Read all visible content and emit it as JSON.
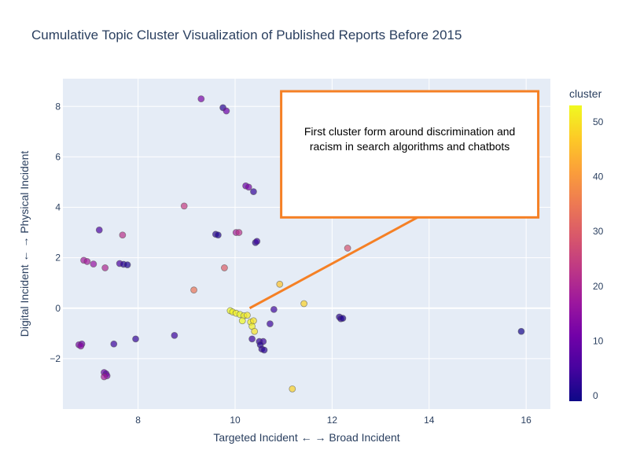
{
  "chart_data": {
    "type": "scatter",
    "title": "Cumulative Topic Cluster Visualization of Published Reports Before 2015",
    "xlabel": "Targeted Incident ← → Broad Incident",
    "ylabel": "Digital Incident ← → Physical Incident",
    "xlim": [
      6.45,
      16.5
    ],
    "ylim": [
      -4.0,
      9.1
    ],
    "x_ticks": [
      8,
      10,
      12,
      14,
      16
    ],
    "y_ticks": [
      -2,
      0,
      2,
      4,
      6,
      8
    ],
    "grid": true,
    "colorbar": {
      "title": "cluster",
      "range": [
        -1,
        53
      ],
      "ticks": [
        0,
        10,
        20,
        30,
        40,
        50
      ],
      "colorscale": [
        "#0d0887",
        "#46039f",
        "#7201a8",
        "#9c179e",
        "#bd3786",
        "#d8576b",
        "#ed7953",
        "#fb9f3a",
        "#fdca26",
        "#f0f921"
      ]
    },
    "annotation": {
      "text_lines": [
        "First cluster form around discrimination and",
        "racism in search algorithms and chatbots"
      ],
      "point": [
        10.3,
        0.0
      ],
      "box": {
        "x0": 10.95,
        "x1": 16.25,
        "y0": 3.6,
        "y1": 8.6
      },
      "border_color": "#f58025",
      "arrow_color": "#f58025"
    },
    "points": [
      {
        "x": 9.3,
        "y": 8.3,
        "c": 12
      },
      {
        "x": 9.75,
        "y": 7.95,
        "c": 2
      },
      {
        "x": 9.82,
        "y": 7.82,
        "c": 10
      },
      {
        "x": 10.22,
        "y": 4.85,
        "c": 10
      },
      {
        "x": 10.28,
        "y": 4.8,
        "c": 12
      },
      {
        "x": 10.38,
        "y": 4.62,
        "c": 3
      },
      {
        "x": 8.95,
        "y": 4.05,
        "c": 24
      },
      {
        "x": 7.2,
        "y": 3.1,
        "c": 6
      },
      {
        "x": 7.68,
        "y": 2.9,
        "c": 22
      },
      {
        "x": 9.6,
        "y": 2.93,
        "c": 2
      },
      {
        "x": 9.65,
        "y": 2.9,
        "c": 1
      },
      {
        "x": 10.02,
        "y": 3.0,
        "c": 18
      },
      {
        "x": 10.08,
        "y": 3.0,
        "c": 22
      },
      {
        "x": 10.42,
        "y": 2.6,
        "c": 2
      },
      {
        "x": 10.45,
        "y": 2.65,
        "c": 4
      },
      {
        "x": 12.32,
        "y": 2.38,
        "c": 28
      },
      {
        "x": 6.88,
        "y": 1.9,
        "c": 18
      },
      {
        "x": 6.95,
        "y": 1.85,
        "c": 18
      },
      {
        "x": 7.08,
        "y": 1.75,
        "c": 16
      },
      {
        "x": 7.32,
        "y": 1.6,
        "c": 20
      },
      {
        "x": 7.62,
        "y": 1.77,
        "c": 6
      },
      {
        "x": 7.7,
        "y": 1.74,
        "c": 2
      },
      {
        "x": 7.78,
        "y": 1.72,
        "c": 1
      },
      {
        "x": 9.78,
        "y": 1.6,
        "c": 30
      },
      {
        "x": 9.15,
        "y": 0.72,
        "c": 34
      },
      {
        "x": 10.92,
        "y": 0.95,
        "c": 46
      },
      {
        "x": 11.42,
        "y": 0.18,
        "c": 48
      },
      {
        "x": 10.8,
        "y": -0.05,
        "c": 4
      },
      {
        "x": 9.9,
        "y": -0.1,
        "c": 53
      },
      {
        "x": 9.95,
        "y": -0.15,
        "c": 52
      },
      {
        "x": 10.02,
        "y": -0.2,
        "c": 52
      },
      {
        "x": 10.1,
        "y": -0.25,
        "c": 53
      },
      {
        "x": 10.18,
        "y": -0.3,
        "c": 52
      },
      {
        "x": 10.25,
        "y": -0.28,
        "c": 51
      },
      {
        "x": 10.15,
        "y": -0.5,
        "c": 53
      },
      {
        "x": 10.32,
        "y": -0.55,
        "c": 52
      },
      {
        "x": 10.38,
        "y": -0.5,
        "c": 50
      },
      {
        "x": 10.35,
        "y": -0.72,
        "c": 52
      },
      {
        "x": 10.4,
        "y": -0.92,
        "c": 50
      },
      {
        "x": 10.72,
        "y": -0.62,
        "c": 4
      },
      {
        "x": 12.15,
        "y": -0.35,
        "c": 2
      },
      {
        "x": 12.18,
        "y": -0.42,
        "c": 3
      },
      {
        "x": 12.22,
        "y": -0.4,
        "c": 1
      },
      {
        "x": 15.9,
        "y": -0.92,
        "c": 0
      },
      {
        "x": 7.95,
        "y": -1.22,
        "c": 3
      },
      {
        "x": 8.75,
        "y": -1.08,
        "c": 4
      },
      {
        "x": 7.5,
        "y": -1.42,
        "c": 4
      },
      {
        "x": 10.35,
        "y": -1.22,
        "c": 4
      },
      {
        "x": 10.5,
        "y": -1.32,
        "c": 3
      },
      {
        "x": 10.58,
        "y": -1.32,
        "c": 4
      },
      {
        "x": 10.52,
        "y": -1.45,
        "c": 2
      },
      {
        "x": 10.55,
        "y": -1.62,
        "c": 3
      },
      {
        "x": 10.6,
        "y": -1.66,
        "c": 2
      },
      {
        "x": 6.78,
        "y": -1.45,
        "c": 12
      },
      {
        "x": 6.84,
        "y": -1.42,
        "c": 10
      },
      {
        "x": 6.82,
        "y": -1.5,
        "c": 14
      },
      {
        "x": 11.18,
        "y": -3.2,
        "c": 48
      },
      {
        "x": 7.3,
        "y": -2.55,
        "c": 10
      },
      {
        "x": 7.34,
        "y": -2.6,
        "c": 8
      },
      {
        "x": 7.36,
        "y": -2.68,
        "c": 12
      },
      {
        "x": 7.3,
        "y": -2.72,
        "c": 18
      }
    ]
  }
}
